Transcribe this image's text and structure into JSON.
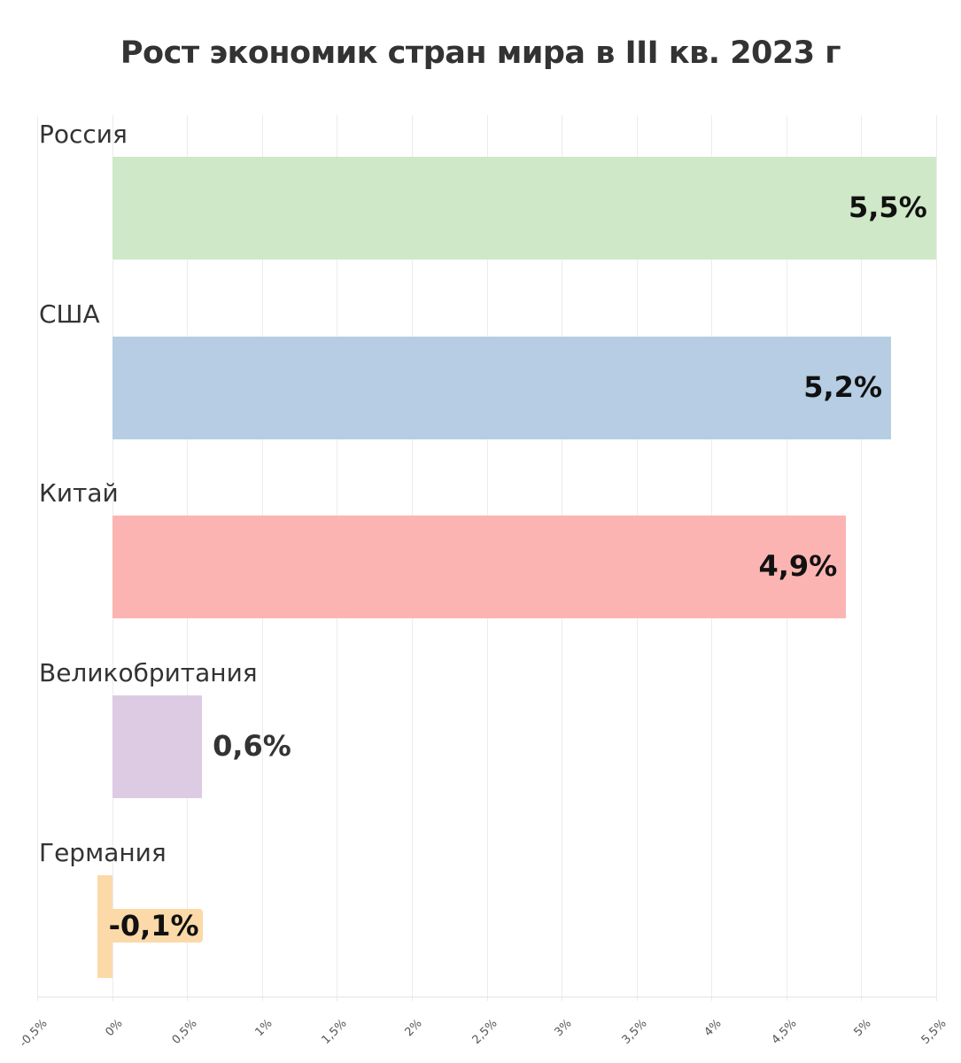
{
  "title": "Рост экономик стран мира в III кв. 2023 г",
  "chart_data": {
    "type": "bar",
    "orientation": "horizontal",
    "title": "Рост экономик стран мира в III кв. 2023 г",
    "categories": [
      "Россия",
      "США",
      "Китай",
      "Великобритания",
      "Германия"
    ],
    "values": [
      5.5,
      5.2,
      4.9,
      0.6,
      -0.1
    ],
    "value_labels": [
      "5,5%",
      "5,2%",
      "4,9%",
      "0,6%",
      "-0,1%"
    ],
    "colors": [
      "#cfe8c7",
      "#b6cde3",
      "#fcb4b2",
      "#dccbe3",
      "#fcd9a8"
    ],
    "xlabel": "",
    "ylabel": "",
    "xlim": [
      -0.5,
      5.5
    ],
    "x_ticks": [
      -0.5,
      0,
      0.5,
      1,
      1.5,
      2,
      2.5,
      3,
      3.5,
      4,
      4.5,
      5,
      5.5
    ],
    "x_tick_labels": [
      "-0,5%",
      "0%",
      "0,5%",
      "1%",
      "1,5%",
      "2%",
      "2,5%",
      "3%",
      "3,5%",
      "4%",
      "4,5%",
      "5%",
      "5,5%"
    ],
    "grid": true,
    "legend": "none"
  }
}
